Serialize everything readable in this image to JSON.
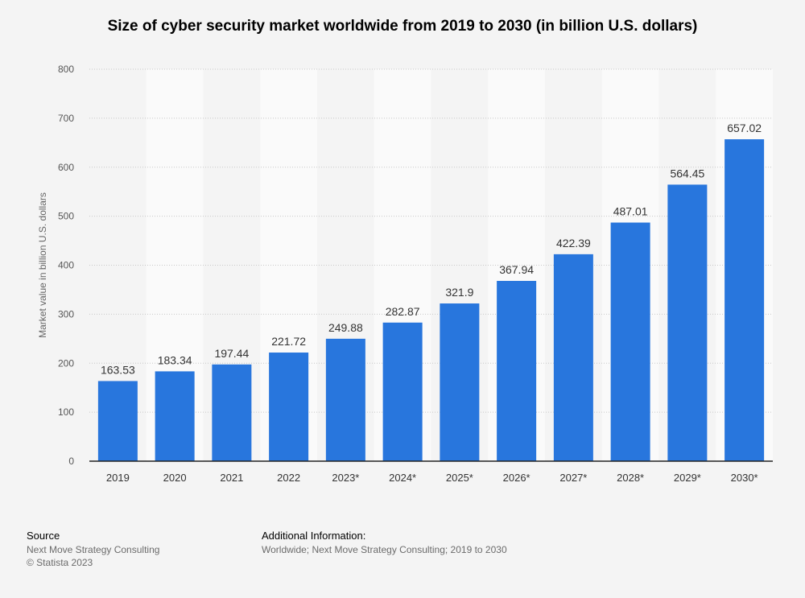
{
  "chart_data": {
    "type": "bar",
    "title": "Size of cyber security market worldwide from 2019 to 2030 (in billion U.S. dollars)",
    "xlabel": "",
    "ylabel": "Market value in billion U.S. dollars",
    "ylim": [
      0,
      800
    ],
    "yticks": [
      0,
      100,
      200,
      300,
      400,
      500,
      600,
      700,
      800
    ],
    "categories": [
      "2019",
      "2020",
      "2021",
      "2022",
      "2023*",
      "2024*",
      "2025*",
      "2026*",
      "2027*",
      "2028*",
      "2029*",
      "2030*"
    ],
    "values": [
      163.53,
      183.34,
      197.44,
      221.72,
      249.88,
      282.87,
      321.9,
      367.94,
      422.39,
      487.01,
      564.45,
      657.02
    ],
    "value_labels": [
      "163.53",
      "183.34",
      "197.44",
      "221.72",
      "249.88",
      "282.87",
      "321.9",
      "367.94",
      "422.39",
      "487.01",
      "564.45",
      "657.02"
    ],
    "grid": true,
    "bar_color": "#2876dd"
  },
  "footer": {
    "source_title": "Source",
    "source_lines": [
      "Next Move Strategy Consulting",
      "© Statista 2023"
    ],
    "info_title": "Additional Information:",
    "info_text": "Worldwide; Next Move Strategy Consulting; 2019 to 2030"
  }
}
